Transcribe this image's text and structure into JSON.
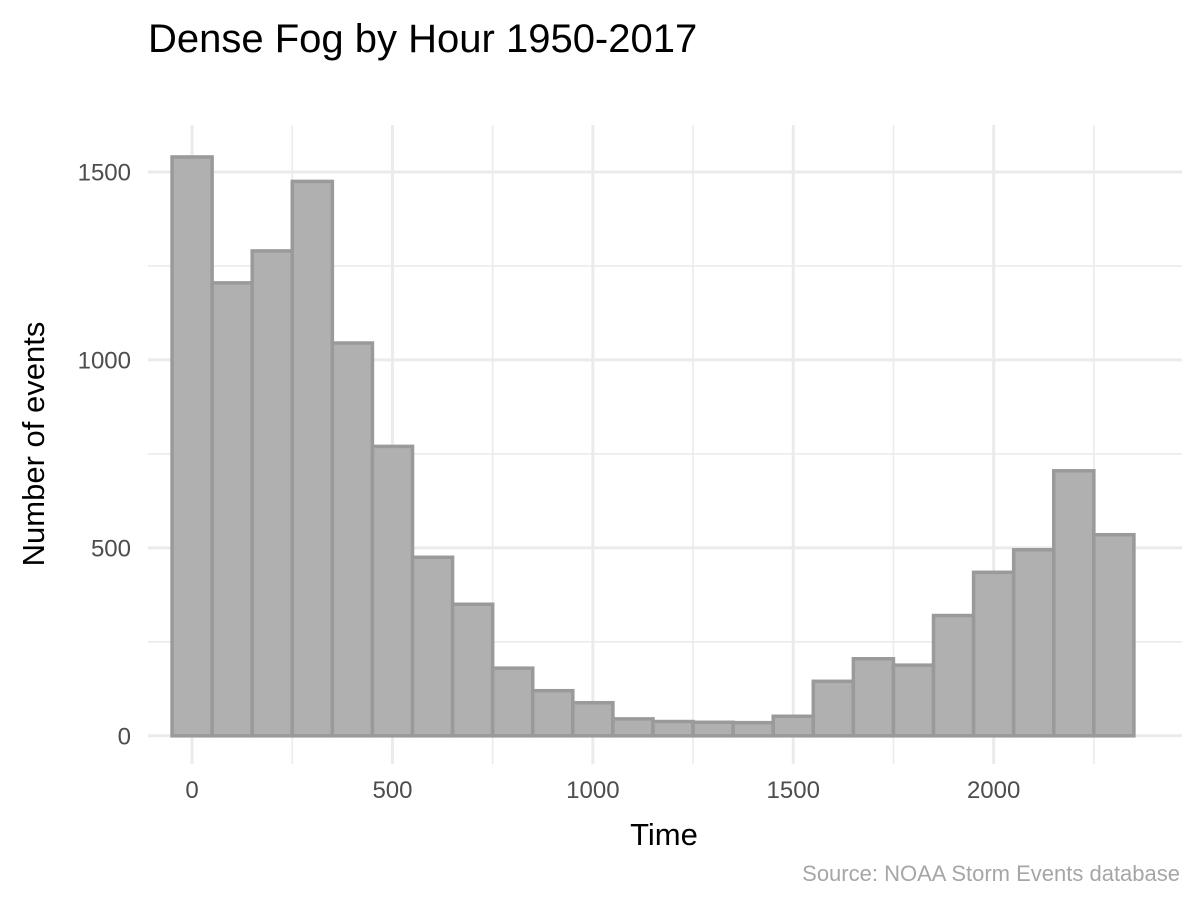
{
  "chart_data": {
    "type": "bar",
    "title": "Dense Fog by Hour 1950-2017",
    "xlabel": "Time",
    "ylabel": "Number of events",
    "caption": "Source: NOAA Storm Events database",
    "bin_width": 100,
    "x": [
      0,
      100,
      200,
      300,
      400,
      500,
      600,
      700,
      800,
      900,
      1000,
      1100,
      1200,
      1300,
      1400,
      1500,
      1600,
      1700,
      1800,
      1900,
      2000,
      2100,
      2200,
      2300
    ],
    "values": [
      1540,
      1205,
      1290,
      1475,
      1045,
      770,
      475,
      350,
      180,
      120,
      88,
      45,
      38,
      36,
      35,
      52,
      145,
      205,
      188,
      320,
      435,
      495,
      705,
      535
    ],
    "xlim": [
      -110,
      2470
    ],
    "ylim": [
      -75,
      1625
    ],
    "x_ticks": [
      0,
      500,
      1000,
      1500,
      2000
    ],
    "x_tick_labels": [
      "0",
      "500",
      "1000",
      "1500",
      "2000"
    ],
    "x_minor_ticks": [
      250,
      750,
      1250,
      1750,
      2250
    ],
    "y_ticks": [
      0,
      500,
      1000,
      1500
    ],
    "y_tick_labels": [
      "0",
      "500",
      "1000",
      "1500"
    ],
    "y_minor_ticks": [
      250,
      750,
      1250
    ],
    "grid": true,
    "legend": "none",
    "colors": {
      "bar_fill": "#b0b0b0",
      "bar_stroke": "#9a9a9a"
    }
  }
}
